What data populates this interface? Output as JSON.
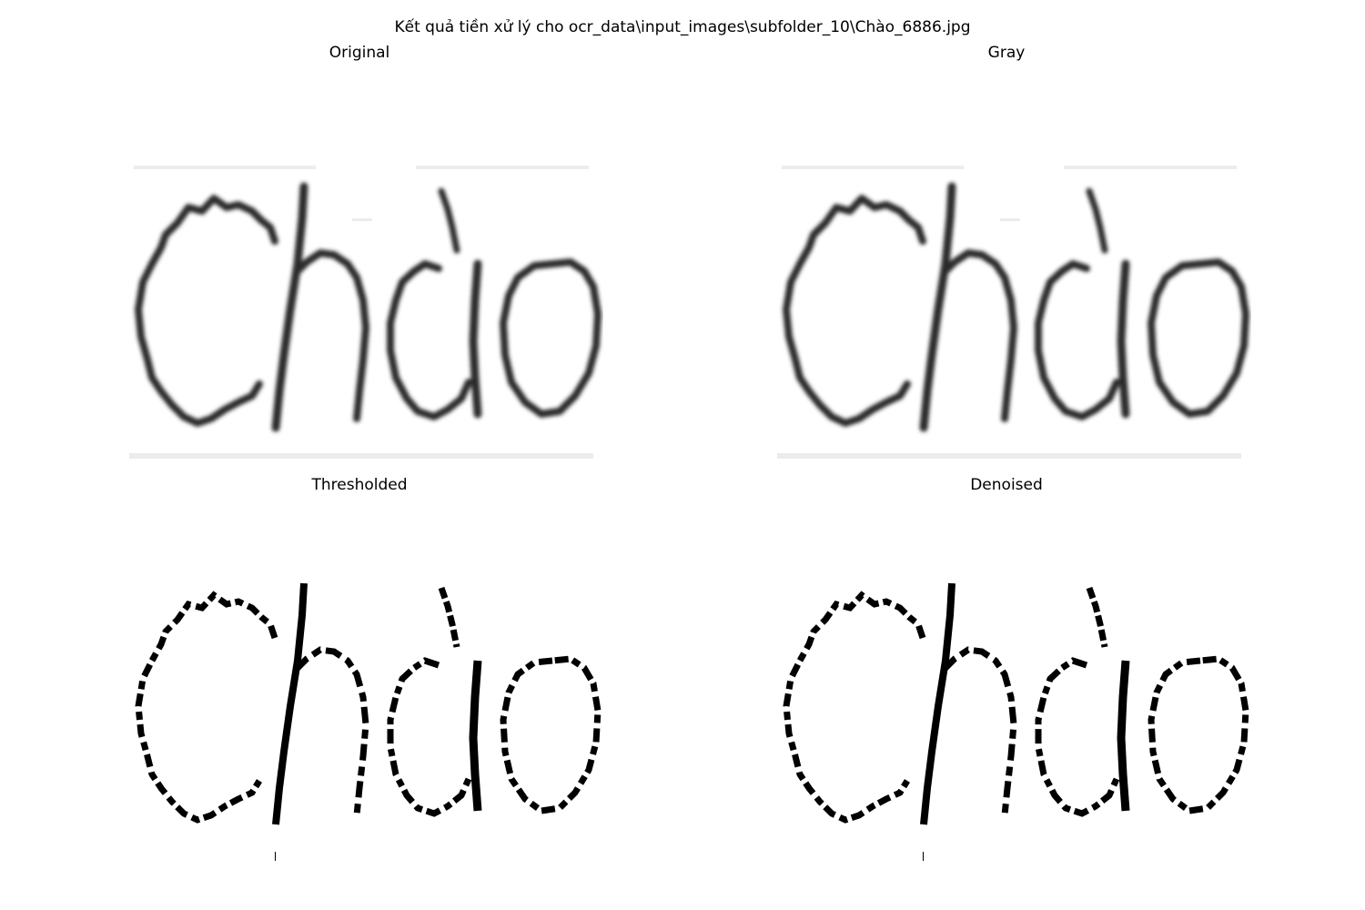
{
  "figure": {
    "title": "Kết quả tiền xử lý cho ocr_data\\input_images\\subfolder_10\\Chào_6886.jpg"
  },
  "panels": [
    {
      "title": "Original",
      "image_text": "Chào",
      "style": "blurred grayscale handwriting"
    },
    {
      "title": "Gray",
      "image_text": "Chào",
      "style": "blurred grayscale handwriting"
    },
    {
      "title": "Thresholded",
      "image_text": "Chào",
      "style": "binary black on white"
    },
    {
      "title": "Denoised",
      "image_text": "Chào",
      "style": "binary black on white"
    }
  ],
  "colors": {
    "background": "#ffffff",
    "ink_gray": "#2b2b2b",
    "ink_binary": "#000000",
    "paper_speckle": "#e9e9e9"
  }
}
